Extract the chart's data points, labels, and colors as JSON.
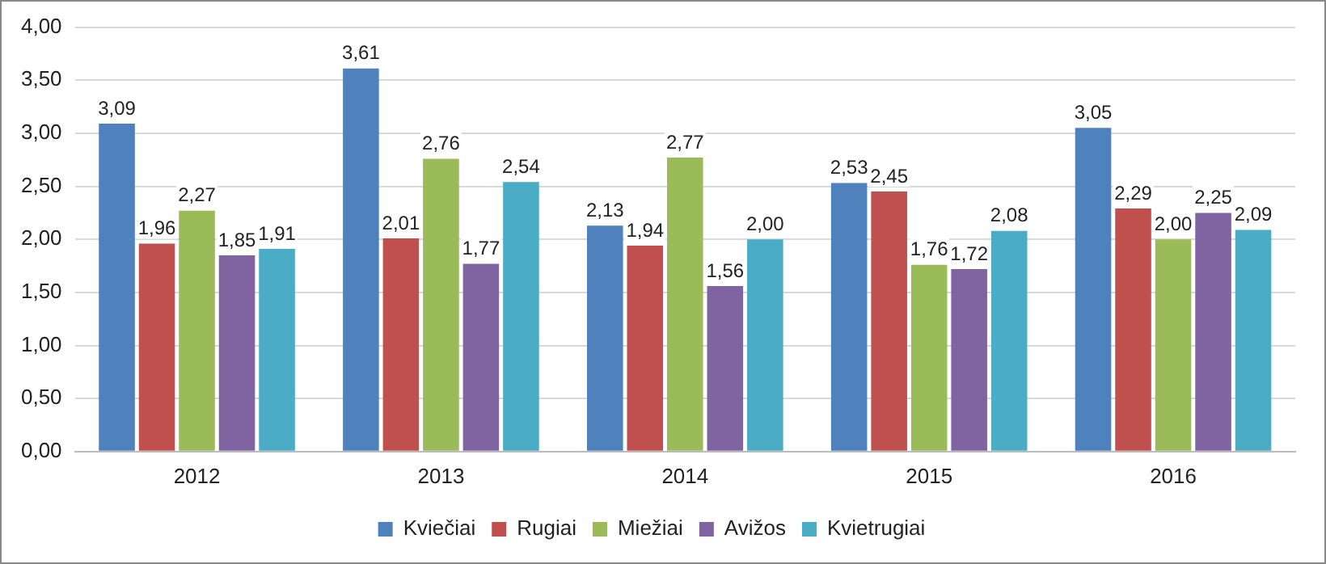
{
  "chart_data": {
    "type": "bar",
    "categories": [
      "2012",
      "2013",
      "2014",
      "2015",
      "2016"
    ],
    "series": [
      {
        "name": "Kviečiai",
        "color": "#4f81bd",
        "values": [
          3.09,
          3.61,
          2.13,
          2.53,
          3.05
        ],
        "value_labels": [
          "3,09",
          "3,61",
          "2,13",
          "2,53",
          "3,05"
        ]
      },
      {
        "name": "Rugiai",
        "color": "#c0504d",
        "values": [
          1.96,
          2.01,
          1.94,
          2.45,
          2.29
        ],
        "value_labels": [
          "1,96",
          "2,01",
          "1,94",
          "2,45",
          "2,29"
        ]
      },
      {
        "name": "Miežiai",
        "color": "#9bbb59",
        "values": [
          2.27,
          2.76,
          2.77,
          1.76,
          2.0
        ],
        "value_labels": [
          "2,27",
          "2,76",
          "2,77",
          "1,76",
          "2,00"
        ]
      },
      {
        "name": "Avižos",
        "color": "#8064a2",
        "values": [
          1.85,
          1.77,
          1.56,
          1.72,
          2.25
        ],
        "value_labels": [
          "1,85",
          "1,77",
          "1,56",
          "1,72",
          "2,25"
        ]
      },
      {
        "name": "Kvietrugiai",
        "color": "#4bacc6",
        "values": [
          1.91,
          2.54,
          2.0,
          2.08,
          2.09
        ],
        "value_labels": [
          "1,91",
          "2,54",
          "2,00",
          "2,08",
          "2,09"
        ]
      }
    ],
    "ylim": [
      0,
      4
    ],
    "yticks": [
      {
        "value": 0,
        "label": "0,00"
      },
      {
        "value": 0.5,
        "label": "0,50"
      },
      {
        "value": 1,
        "label": "1,00"
      },
      {
        "value": 1.5,
        "label": "1,50"
      },
      {
        "value": 2,
        "label": "2,00"
      },
      {
        "value": 2.5,
        "label": "2,50"
      },
      {
        "value": 3,
        "label": "3,00"
      },
      {
        "value": 3.5,
        "label": "3,50"
      },
      {
        "value": 4,
        "label": "4,00"
      }
    ],
    "grid": "y",
    "legend": "bottom"
  }
}
